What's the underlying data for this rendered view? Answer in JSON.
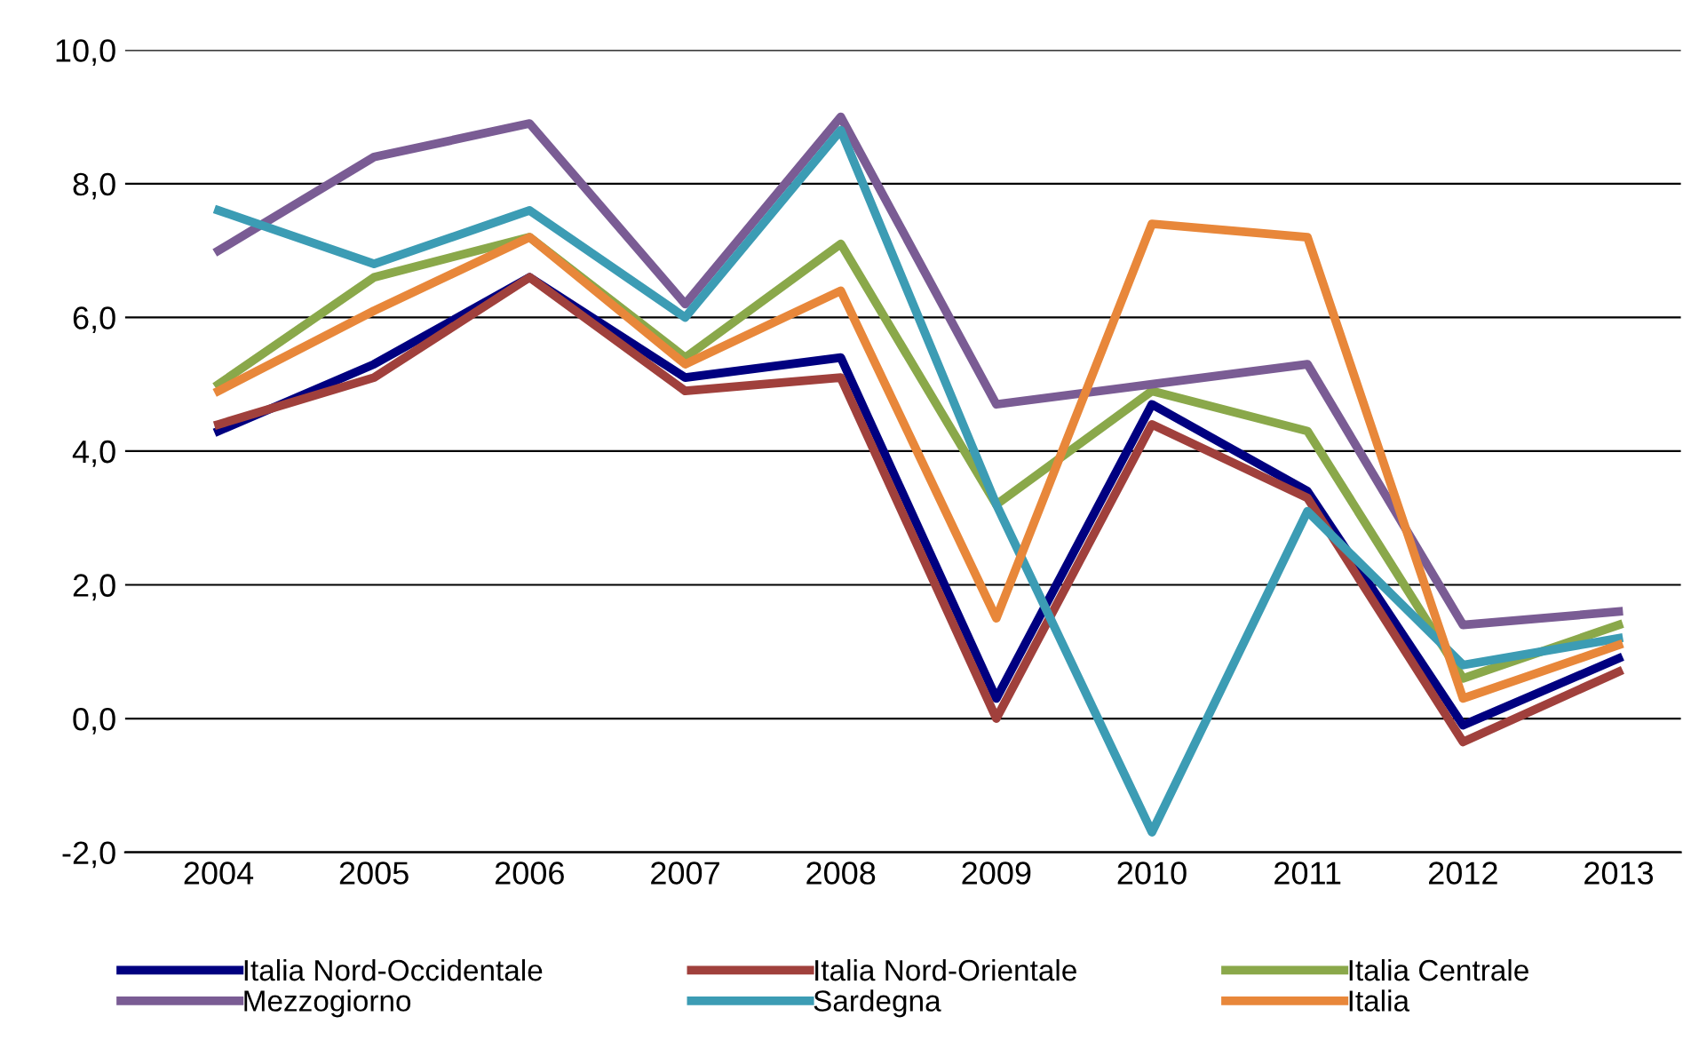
{
  "chart_data": {
    "type": "line",
    "categories": [
      "2004",
      "2005",
      "2006",
      "2007",
      "2008",
      "2009",
      "2010",
      "2011",
      "2012",
      "2013"
    ],
    "series": [
      {
        "name": "Italia Nord-Occidentale",
        "color": "#000080",
        "values": [
          4.3,
          5.3,
          6.6,
          5.1,
          5.4,
          0.3,
          4.7,
          3.4,
          -0.1,
          0.9
        ]
      },
      {
        "name": "Italia Nord-Orientale",
        "color": "#a0403c",
        "values": [
          4.4,
          5.1,
          6.6,
          4.9,
          5.1,
          0.0,
          4.4,
          3.3,
          -0.35,
          0.7
        ]
      },
      {
        "name": "Italia Centrale",
        "color": "#8aa84a",
        "values": [
          5.0,
          6.6,
          7.2,
          5.4,
          7.1,
          3.2,
          4.9,
          4.3,
          0.6,
          1.4
        ]
      },
      {
        "name": "Mezzogiorno",
        "color": "#7a5c94",
        "values": [
          7.0,
          8.4,
          8.9,
          6.2,
          9.0,
          4.7,
          5.0,
          5.3,
          1.4,
          1.6
        ]
      },
      {
        "name": "Sardegna",
        "color": "#3c9cb4",
        "values": [
          7.6,
          6.8,
          7.6,
          6.0,
          8.8,
          3.2,
          -1.7,
          3.1,
          0.8,
          1.2
        ]
      },
      {
        "name": "Italia",
        "color": "#e8873a",
        "values": [
          4.9,
          6.1,
          7.2,
          5.3,
          6.4,
          1.5,
          7.4,
          7.2,
          0.3,
          1.1
        ]
      }
    ],
    "ylim": [
      -2,
      10
    ],
    "yticks": [
      {
        "value": -2,
        "label": "-2,0"
      },
      {
        "value": 0,
        "label": "0,0"
      },
      {
        "value": 2,
        "label": "2,0"
      },
      {
        "value": 4,
        "label": "4,0"
      },
      {
        "value": 6,
        "label": "6,0"
      },
      {
        "value": 8,
        "label": "8,0"
      },
      {
        "value": 10,
        "label": "10,0"
      }
    ],
    "grid": "y",
    "legend": "bottom",
    "marker": "none",
    "line_style": "solid"
  }
}
